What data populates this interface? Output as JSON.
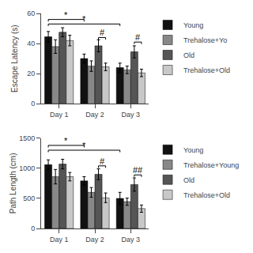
{
  "chart_data": [
    {
      "type": "bar",
      "ylabel": "Escape Latency (s)",
      "categories": [
        "Day 1",
        "Day 2",
        "Day 3"
      ],
      "series": [
        {
          "name": "Young",
          "color": "#111111",
          "values": [
            44.5,
            30.0,
            24.0
          ],
          "errors": [
            3.5,
            3.0,
            3.0
          ]
        },
        {
          "name": "Trehalose+Yo",
          "color": "#888888",
          "values": [
            38.0,
            25.0,
            22.5
          ],
          "errors": [
            4.5,
            3.5,
            2.5
          ]
        },
        {
          "name": "Old",
          "color": "#555555",
          "values": [
            47.5,
            38.5,
            34.5
          ],
          "errors": [
            3.0,
            4.0,
            4.0
          ]
        },
        {
          "name": "Trehalose+Old",
          "color": "#c8c8c8",
          "values": [
            42.0,
            24.5,
            20.5
          ],
          "errors": [
            3.5,
            2.5,
            2.5
          ]
        }
      ],
      "ylim": [
        0,
        60
      ],
      "yticks": [
        0,
        20,
        40,
        60
      ],
      "grid": false,
      "legend": "right",
      "annotations": [
        {
          "text": "*",
          "y": 56,
          "from": {
            "category": "Day 1",
            "series": "Young"
          },
          "to": {
            "category": "Day 2",
            "series": "Young"
          }
        },
        {
          "text": "*",
          "y": 53,
          "from": {
            "category": "Day 1",
            "series": "Young"
          },
          "to": {
            "category": "Day 3",
            "series": "Young"
          }
        },
        {
          "text": "#",
          "y": 44,
          "from": {
            "category": "Day 2",
            "series": "Old"
          },
          "to": {
            "category": "Day 2",
            "series": "Trehalose+Old"
          }
        },
        {
          "text": "#",
          "y": 41,
          "from": {
            "category": "Day 3",
            "series": "Old"
          },
          "to": {
            "category": "Day 3",
            "series": "Trehalose+Old"
          }
        }
      ]
    },
    {
      "type": "bar",
      "ylabel": "Path Length (cm)",
      "categories": [
        "Day 1",
        "Day 2",
        "Day 3"
      ],
      "series": [
        {
          "name": "Young",
          "color": "#111111",
          "values": [
            1060,
            790,
            500
          ],
          "errors": [
            80,
            70,
            100
          ]
        },
        {
          "name": "Trehalose+Young",
          "color": "#888888",
          "values": [
            860,
            600,
            445
          ],
          "errors": [
            120,
            80,
            60
          ]
        },
        {
          "name": "Old",
          "color": "#555555",
          "values": [
            1070,
            900,
            730
          ],
          "errors": [
            80,
            90,
            110
          ]
        },
        {
          "name": "Trehalose+Old",
          "color": "#c8c8c8",
          "values": [
            860,
            510,
            330
          ],
          "errors": [
            70,
            80,
            60
          ]
        }
      ],
      "ylim": [
        0,
        1500
      ],
      "yticks": [
        0,
        500,
        1000,
        1500
      ],
      "grid": false,
      "legend": "right",
      "annotations": [
        {
          "text": "*",
          "y": 1380,
          "from": {
            "category": "Day 1",
            "series": "Young"
          },
          "to": {
            "category": "Day 2",
            "series": "Young"
          }
        },
        {
          "text": "*",
          "y": 1300,
          "from": {
            "category": "Day 1",
            "series": "Young"
          },
          "to": {
            "category": "Day 3",
            "series": "Young"
          }
        },
        {
          "text": "#",
          "y": 1040,
          "from": {
            "category": "Day 2",
            "series": "Old"
          },
          "to": {
            "category": "Day 2",
            "series": "Trehalose+Old"
          }
        },
        {
          "text": "##",
          "y": 890,
          "from": {
            "category": "Day 3",
            "series": "Old"
          },
          "to": {
            "category": "Day 3",
            "series": "Trehalose+Old"
          }
        }
      ]
    }
  ]
}
